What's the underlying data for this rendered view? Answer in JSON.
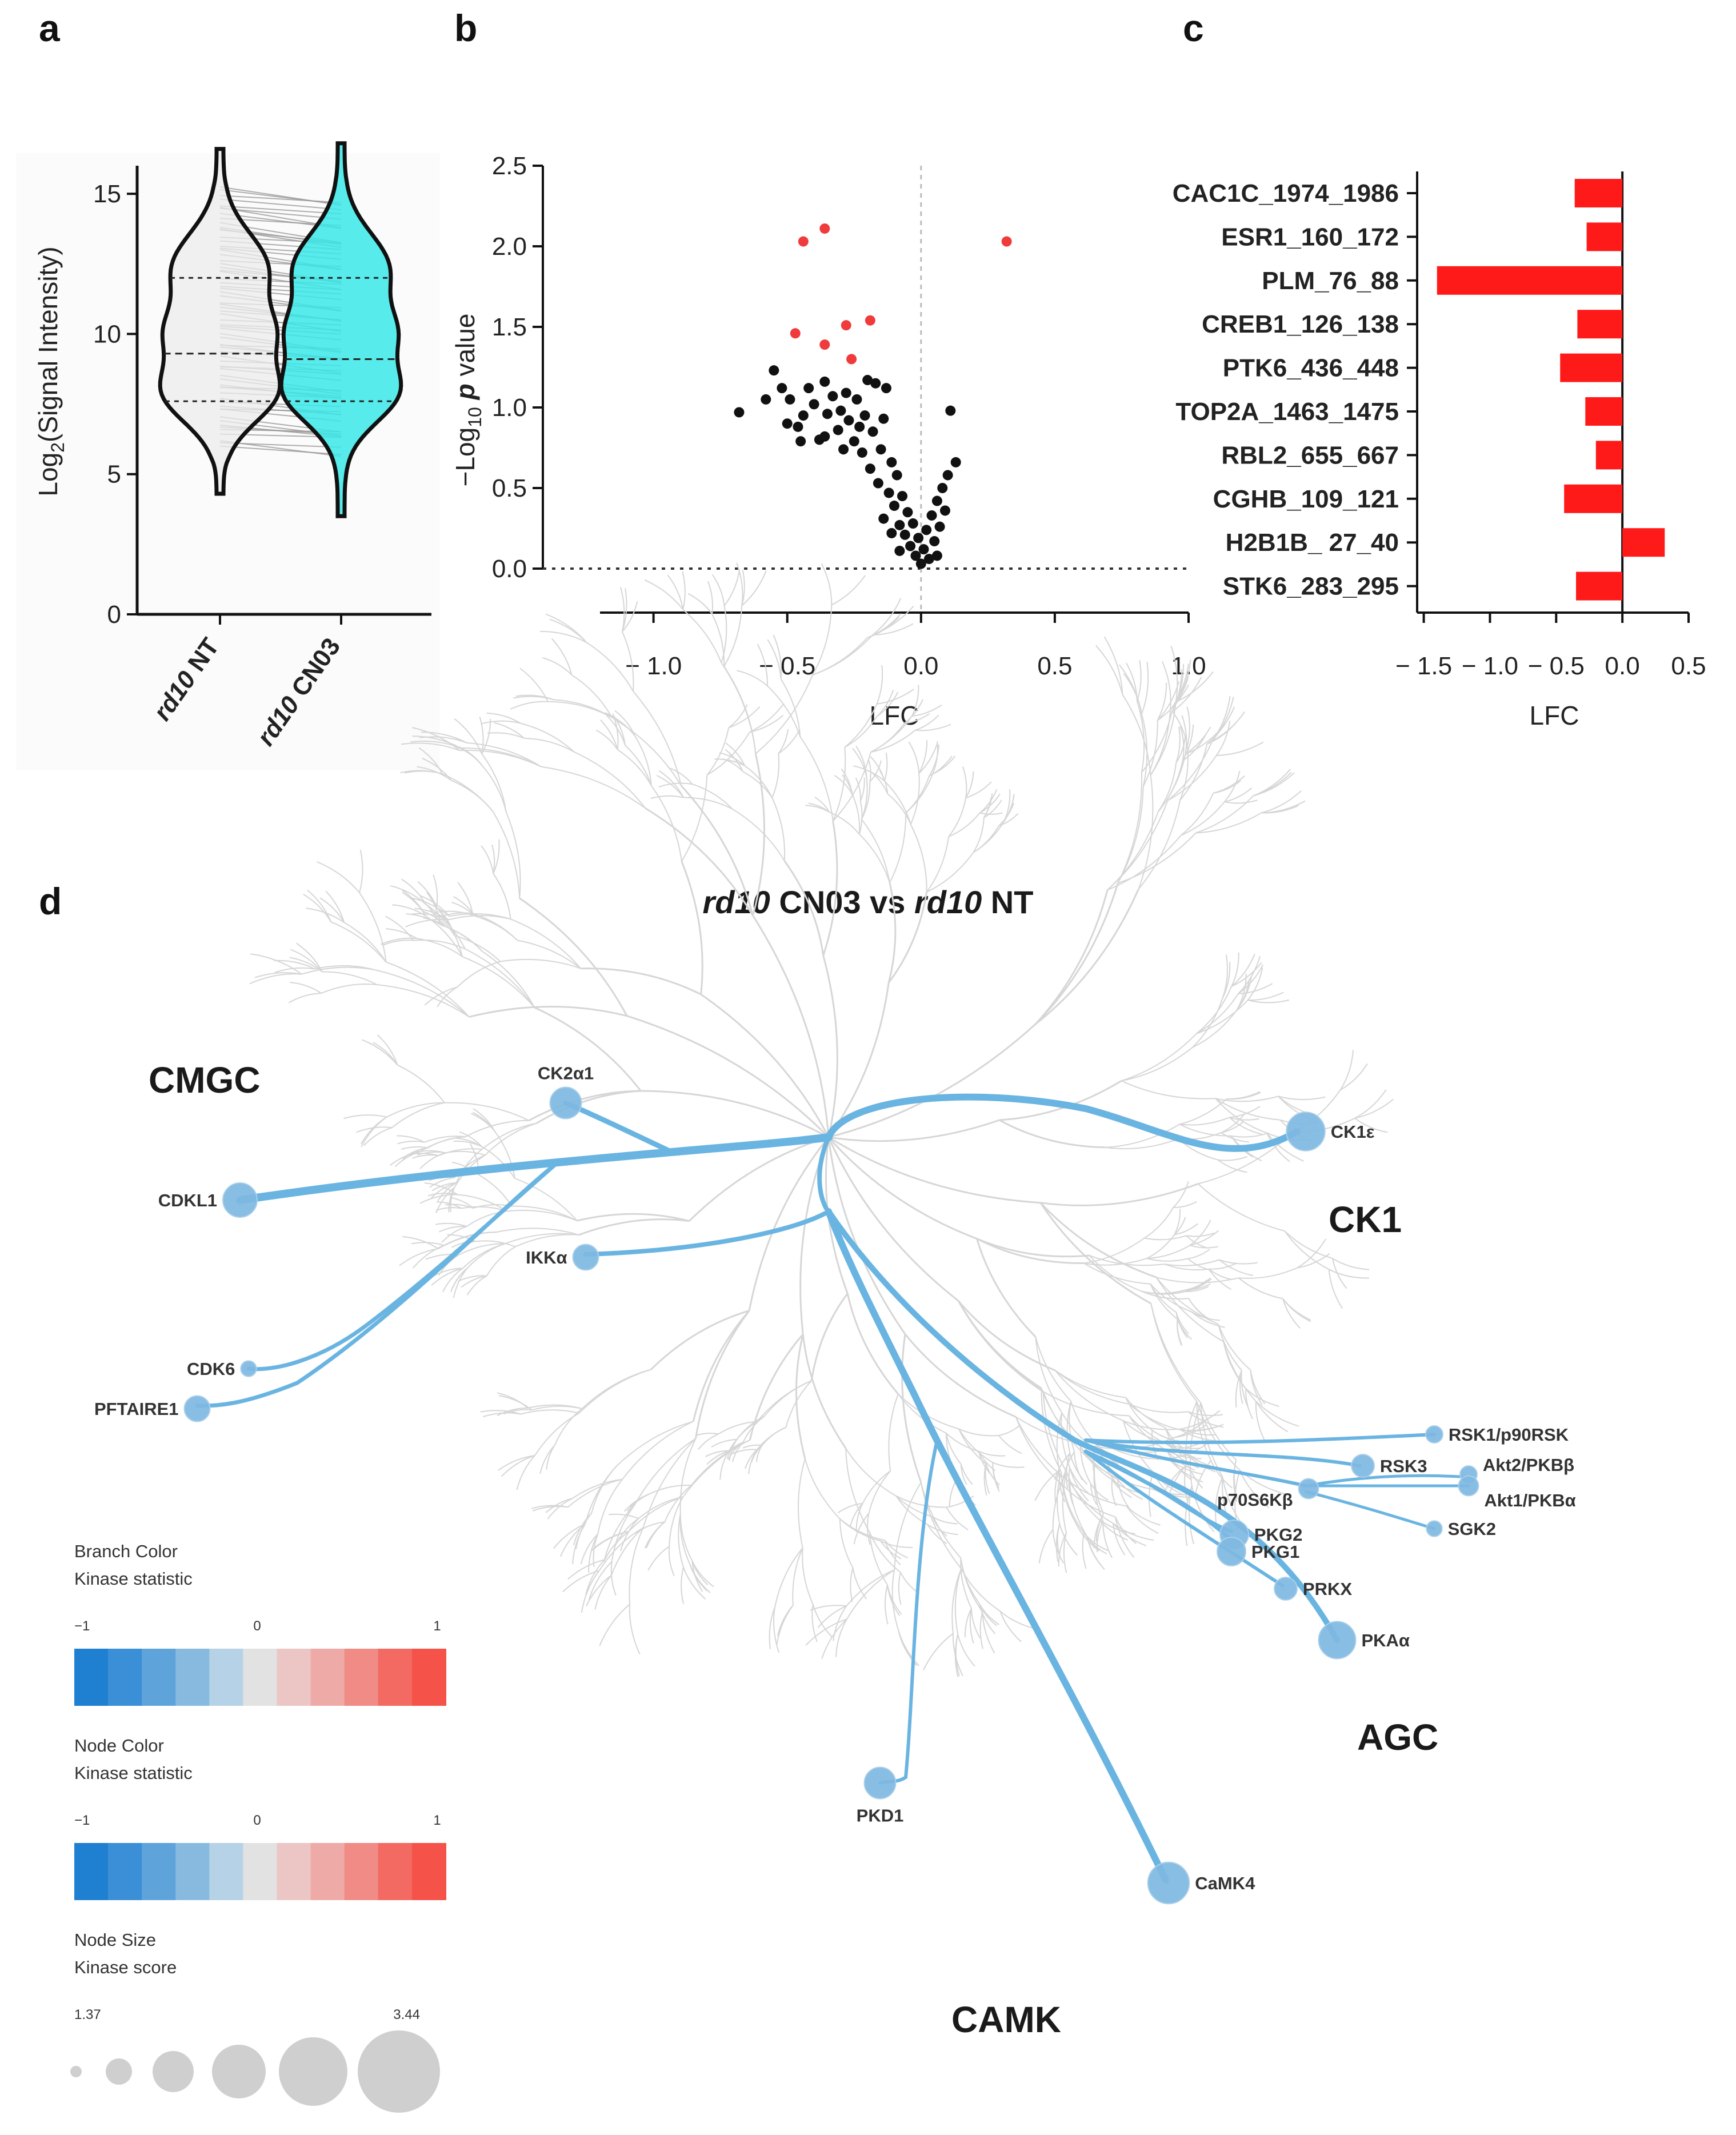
{
  "panel_labels": {
    "a": "a",
    "b": "b",
    "c": "c",
    "d": "d"
  },
  "chart_data": [
    {
      "id": "a",
      "type": "violin",
      "ylabel": "Log2(Signal Intensity)",
      "ylabel_parts": {
        "log": "Log",
        "sub": "2",
        "rest": "(Signal Intensity)"
      },
      "ylim": [
        0,
        16
      ],
      "yticks": [
        0,
        5,
        10,
        15
      ],
      "categories": [
        {
          "italic": "rd10",
          "rest": " NT"
        },
        {
          "italic": "rd10",
          "rest": " CN03"
        }
      ],
      "series": [
        {
          "name": "rd10 NT",
          "color": "#ececec",
          "median": 9.3,
          "q1": 7.6,
          "q3": 12.0,
          "range": [
            4.3,
            16.6
          ]
        },
        {
          "name": "rd10 CN03",
          "color": "#3ae7e7",
          "median": 9.1,
          "q1": 7.6,
          "q3": 12.0,
          "range": [
            3.5,
            16.8
          ]
        }
      ]
    },
    {
      "id": "b",
      "type": "scatter",
      "title": "",
      "xlabel": "LFC",
      "ylabel_parts": {
        "pre": "−Log",
        "sub": "10",
        "italic": " p",
        "rest": " value"
      },
      "xlim": [
        -1.2,
        1.0
      ],
      "ylim": [
        0,
        2.5
      ],
      "xticks": [
        -1.0,
        -0.5,
        0.0,
        0.5,
        1.0
      ],
      "xtick_labels": [
        "− 1.0",
        "− 0.5",
        "0.0",
        "0.5",
        "1.0"
      ],
      "yticks": [
        0.0,
        0.5,
        1.0,
        1.5,
        2.0,
        2.5
      ],
      "ytick_labels": [
        "0.0",
        "0.5",
        "1.0",
        "1.5",
        "2.0",
        "2.5"
      ],
      "threshold_y": 0.0,
      "significant": {
        "color": "#ef3b3b",
        "points": [
          [
            -0.44,
            2.03
          ],
          [
            -0.36,
            2.11
          ],
          [
            0.32,
            2.03
          ],
          [
            -0.47,
            1.46
          ],
          [
            -0.36,
            1.39
          ],
          [
            -0.28,
            1.51
          ],
          [
            -0.19,
            1.54
          ],
          [
            -0.26,
            1.3
          ]
        ]
      },
      "nonsignificant": {
        "color": "#111111",
        "points": [
          [
            -0.68,
            0.97
          ],
          [
            -0.55,
            1.23
          ],
          [
            -0.52,
            1.12
          ],
          [
            -0.49,
            1.05
          ],
          [
            -0.46,
            0.88
          ],
          [
            -0.44,
            0.95
          ],
          [
            -0.42,
            1.12
          ],
          [
            -0.4,
            1.02
          ],
          [
            -0.38,
            0.8
          ],
          [
            -0.36,
            1.16
          ],
          [
            -0.35,
            0.96
          ],
          [
            -0.33,
            1.07
          ],
          [
            -0.31,
            0.86
          ],
          [
            -0.3,
            0.98
          ],
          [
            -0.28,
            1.09
          ],
          [
            -0.27,
            0.92
          ],
          [
            -0.25,
            0.79
          ],
          [
            -0.24,
            1.05
          ],
          [
            -0.22,
            0.72
          ],
          [
            -0.21,
            0.95
          ],
          [
            -0.2,
            1.17
          ],
          [
            -0.19,
            0.62
          ],
          [
            -0.18,
            0.85
          ],
          [
            -0.17,
            1.15
          ],
          [
            -0.16,
            0.53
          ],
          [
            -0.15,
            0.74
          ],
          [
            -0.14,
            0.93
          ],
          [
            -0.13,
            1.12
          ],
          [
            -0.12,
            0.47
          ],
          [
            -0.11,
            0.66
          ],
          [
            -0.1,
            0.39
          ],
          [
            -0.09,
            0.58
          ],
          [
            -0.08,
            0.27
          ],
          [
            -0.07,
            0.45
          ],
          [
            -0.06,
            0.21
          ],
          [
            -0.05,
            0.35
          ],
          [
            -0.04,
            0.14
          ],
          [
            -0.03,
            0.28
          ],
          [
            -0.02,
            0.08
          ],
          [
            -0.01,
            0.19
          ],
          [
            0.0,
            0.03
          ],
          [
            0.01,
            0.12
          ],
          [
            0.02,
            0.24
          ],
          [
            0.03,
            0.06
          ],
          [
            0.04,
            0.33
          ],
          [
            0.05,
            0.17
          ],
          [
            0.06,
            0.42
          ],
          [
            0.07,
            0.26
          ],
          [
            0.08,
            0.5
          ],
          [
            0.09,
            0.36
          ],
          [
            0.1,
            0.58
          ],
          [
            0.11,
            0.98
          ],
          [
            0.13,
            0.66
          ],
          [
            -0.45,
            0.79
          ],
          [
            -0.5,
            0.9
          ],
          [
            -0.58,
            1.05
          ],
          [
            -0.36,
            0.82
          ],
          [
            -0.29,
            0.74
          ],
          [
            -0.23,
            0.88
          ],
          [
            -0.14,
            0.31
          ],
          [
            -0.11,
            0.22
          ],
          [
            -0.08,
            0.11
          ],
          [
            0.06,
            0.08
          ]
        ]
      }
    },
    {
      "id": "c",
      "type": "bar",
      "orientation": "horizontal",
      "xlabel": "LFC",
      "xlim": [
        -1.55,
        0.5
      ],
      "xticks": [
        -1.5,
        -1.0,
        -0.5,
        0.0,
        0.5
      ],
      "xtick_labels": [
        "− 1.5",
        "− 1.0",
        "− 0.5",
        "0.0",
        "0.5"
      ],
      "color": "#ff1a1a",
      "categories": [
        "CAC1C_1974_1986",
        "ESR1_160_172",
        "PLM_76_88",
        "CREB1_126_138",
        "PTK6_436_448",
        "TOP2A_1463_1475",
        "RBL2_655_667",
        "CGHB_109_121",
        "H2B1B_ 27_40",
        "STK6_283_295"
      ],
      "values": [
        -0.36,
        -0.27,
        -1.4,
        -0.34,
        -0.47,
        -0.28,
        -0.2,
        -0.44,
        0.32,
        -0.35
      ]
    },
    {
      "id": "d",
      "type": "kinome-tree",
      "title_parts": [
        {
          "text": "rd10",
          "italic": true
        },
        {
          "text": " CN03 vs ",
          "italic": false
        },
        {
          "text": "rd10",
          "italic": true
        },
        {
          "text": " NT",
          "italic": false
        }
      ],
      "groups": [
        "CMGC",
        "CK1",
        "AGC",
        "CAMK"
      ],
      "kinases": [
        {
          "name": "CK2α1",
          "score": 2.6
        },
        {
          "name": "CK1ε",
          "score": 3.1
        },
        {
          "name": "CDKL1",
          "score": 2.8
        },
        {
          "name": "IKKα",
          "score": 2.2
        },
        {
          "name": "CDK6",
          "score": 1.5
        },
        {
          "name": "PFTAIRE1",
          "score": 2.2
        },
        {
          "name": "RSK1/p90RSK",
          "score": 1.6
        },
        {
          "name": "RSK3",
          "score": 2.0
        },
        {
          "name": "Akt2/PKBβ",
          "score": 1.6
        },
        {
          "name": "Akt1/PKBα",
          "score": 1.8
        },
        {
          "name": "p70S6Kβ",
          "score": 1.8
        },
        {
          "name": "SGK2",
          "score": 1.5
        },
        {
          "name": "PKG2",
          "score": 2.4
        },
        {
          "name": "PKG1",
          "score": 2.4
        },
        {
          "name": "PRKX",
          "score": 2.0
        },
        {
          "name": "PKAα",
          "score": 3.0
        },
        {
          "name": "PKD1",
          "score": 2.6
        },
        {
          "name": "CaMK4",
          "score": 3.3
        }
      ],
      "branch_color": "#6ab4e2",
      "legend": {
        "branch": {
          "title1": "Branch Color",
          "title2": "Kinase statistic",
          "min": "−1",
          "mid": "0",
          "max": "1"
        },
        "node": {
          "title1": "Node Color",
          "title2": "Kinase statistic",
          "min": "−1",
          "mid": "0",
          "max": "1"
        },
        "size": {
          "title1": "Node Size",
          "title2": "Kinase score",
          "min": "1.37",
          "max": "3.44"
        },
        "scale_colors": [
          "#1f7fd0",
          "#3a8fd6",
          "#5fa3db",
          "#88badf",
          "#b6d2e6",
          "#e2e2e2",
          "#ecc6c4",
          "#eeaaa6",
          "#f08b86",
          "#f36a62",
          "#f5524a"
        ]
      }
    }
  ]
}
